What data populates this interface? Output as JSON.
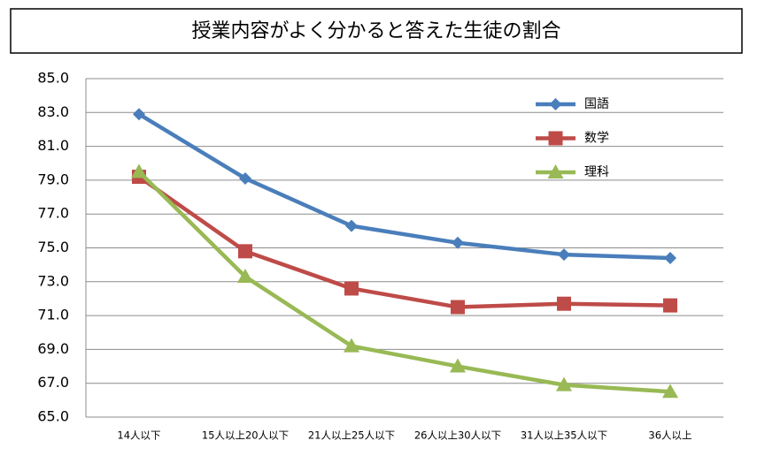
{
  "chart_data": {
    "type": "line",
    "title": "授業内容がよく分かると答えた生徒の割合",
    "categories": [
      "14人以下",
      "15人以上20人以下",
      "21人以上25人以下",
      "26人以上30人以下",
      "31人以上35人以下",
      "36人以上"
    ],
    "series": [
      {
        "name": "国語",
        "color": "#4a7ebb",
        "marker": "diamond",
        "values": [
          82.9,
          79.1,
          76.3,
          75.3,
          74.6,
          74.4
        ]
      },
      {
        "name": "数学",
        "color": "#be4b48",
        "marker": "square",
        "values": [
          79.2,
          74.8,
          72.6,
          71.5,
          71.7,
          71.6
        ]
      },
      {
        "name": "理科",
        "color": "#98b954",
        "marker": "triangle",
        "values": [
          79.5,
          73.3,
          69.2,
          68.0,
          66.9,
          66.5
        ]
      }
    ],
    "ylim": [
      65,
      85
    ],
    "yticks": [
      {
        "value": 65,
        "label": "65.0"
      },
      {
        "value": 67,
        "label": "67.0"
      },
      {
        "value": 69,
        "label": "69.0"
      },
      {
        "value": 71,
        "label": "71.0"
      },
      {
        "value": 73,
        "label": "73.0"
      },
      {
        "value": 75,
        "label": "75.0"
      },
      {
        "value": 77,
        "label": "77.0"
      },
      {
        "value": 79,
        "label": "79.0"
      },
      {
        "value": 81,
        "label": "81.0"
      },
      {
        "value": 83,
        "label": "83.0"
      },
      {
        "value": 85,
        "label": "85.0"
      }
    ],
    "grid": true,
    "legend": "upper right"
  }
}
